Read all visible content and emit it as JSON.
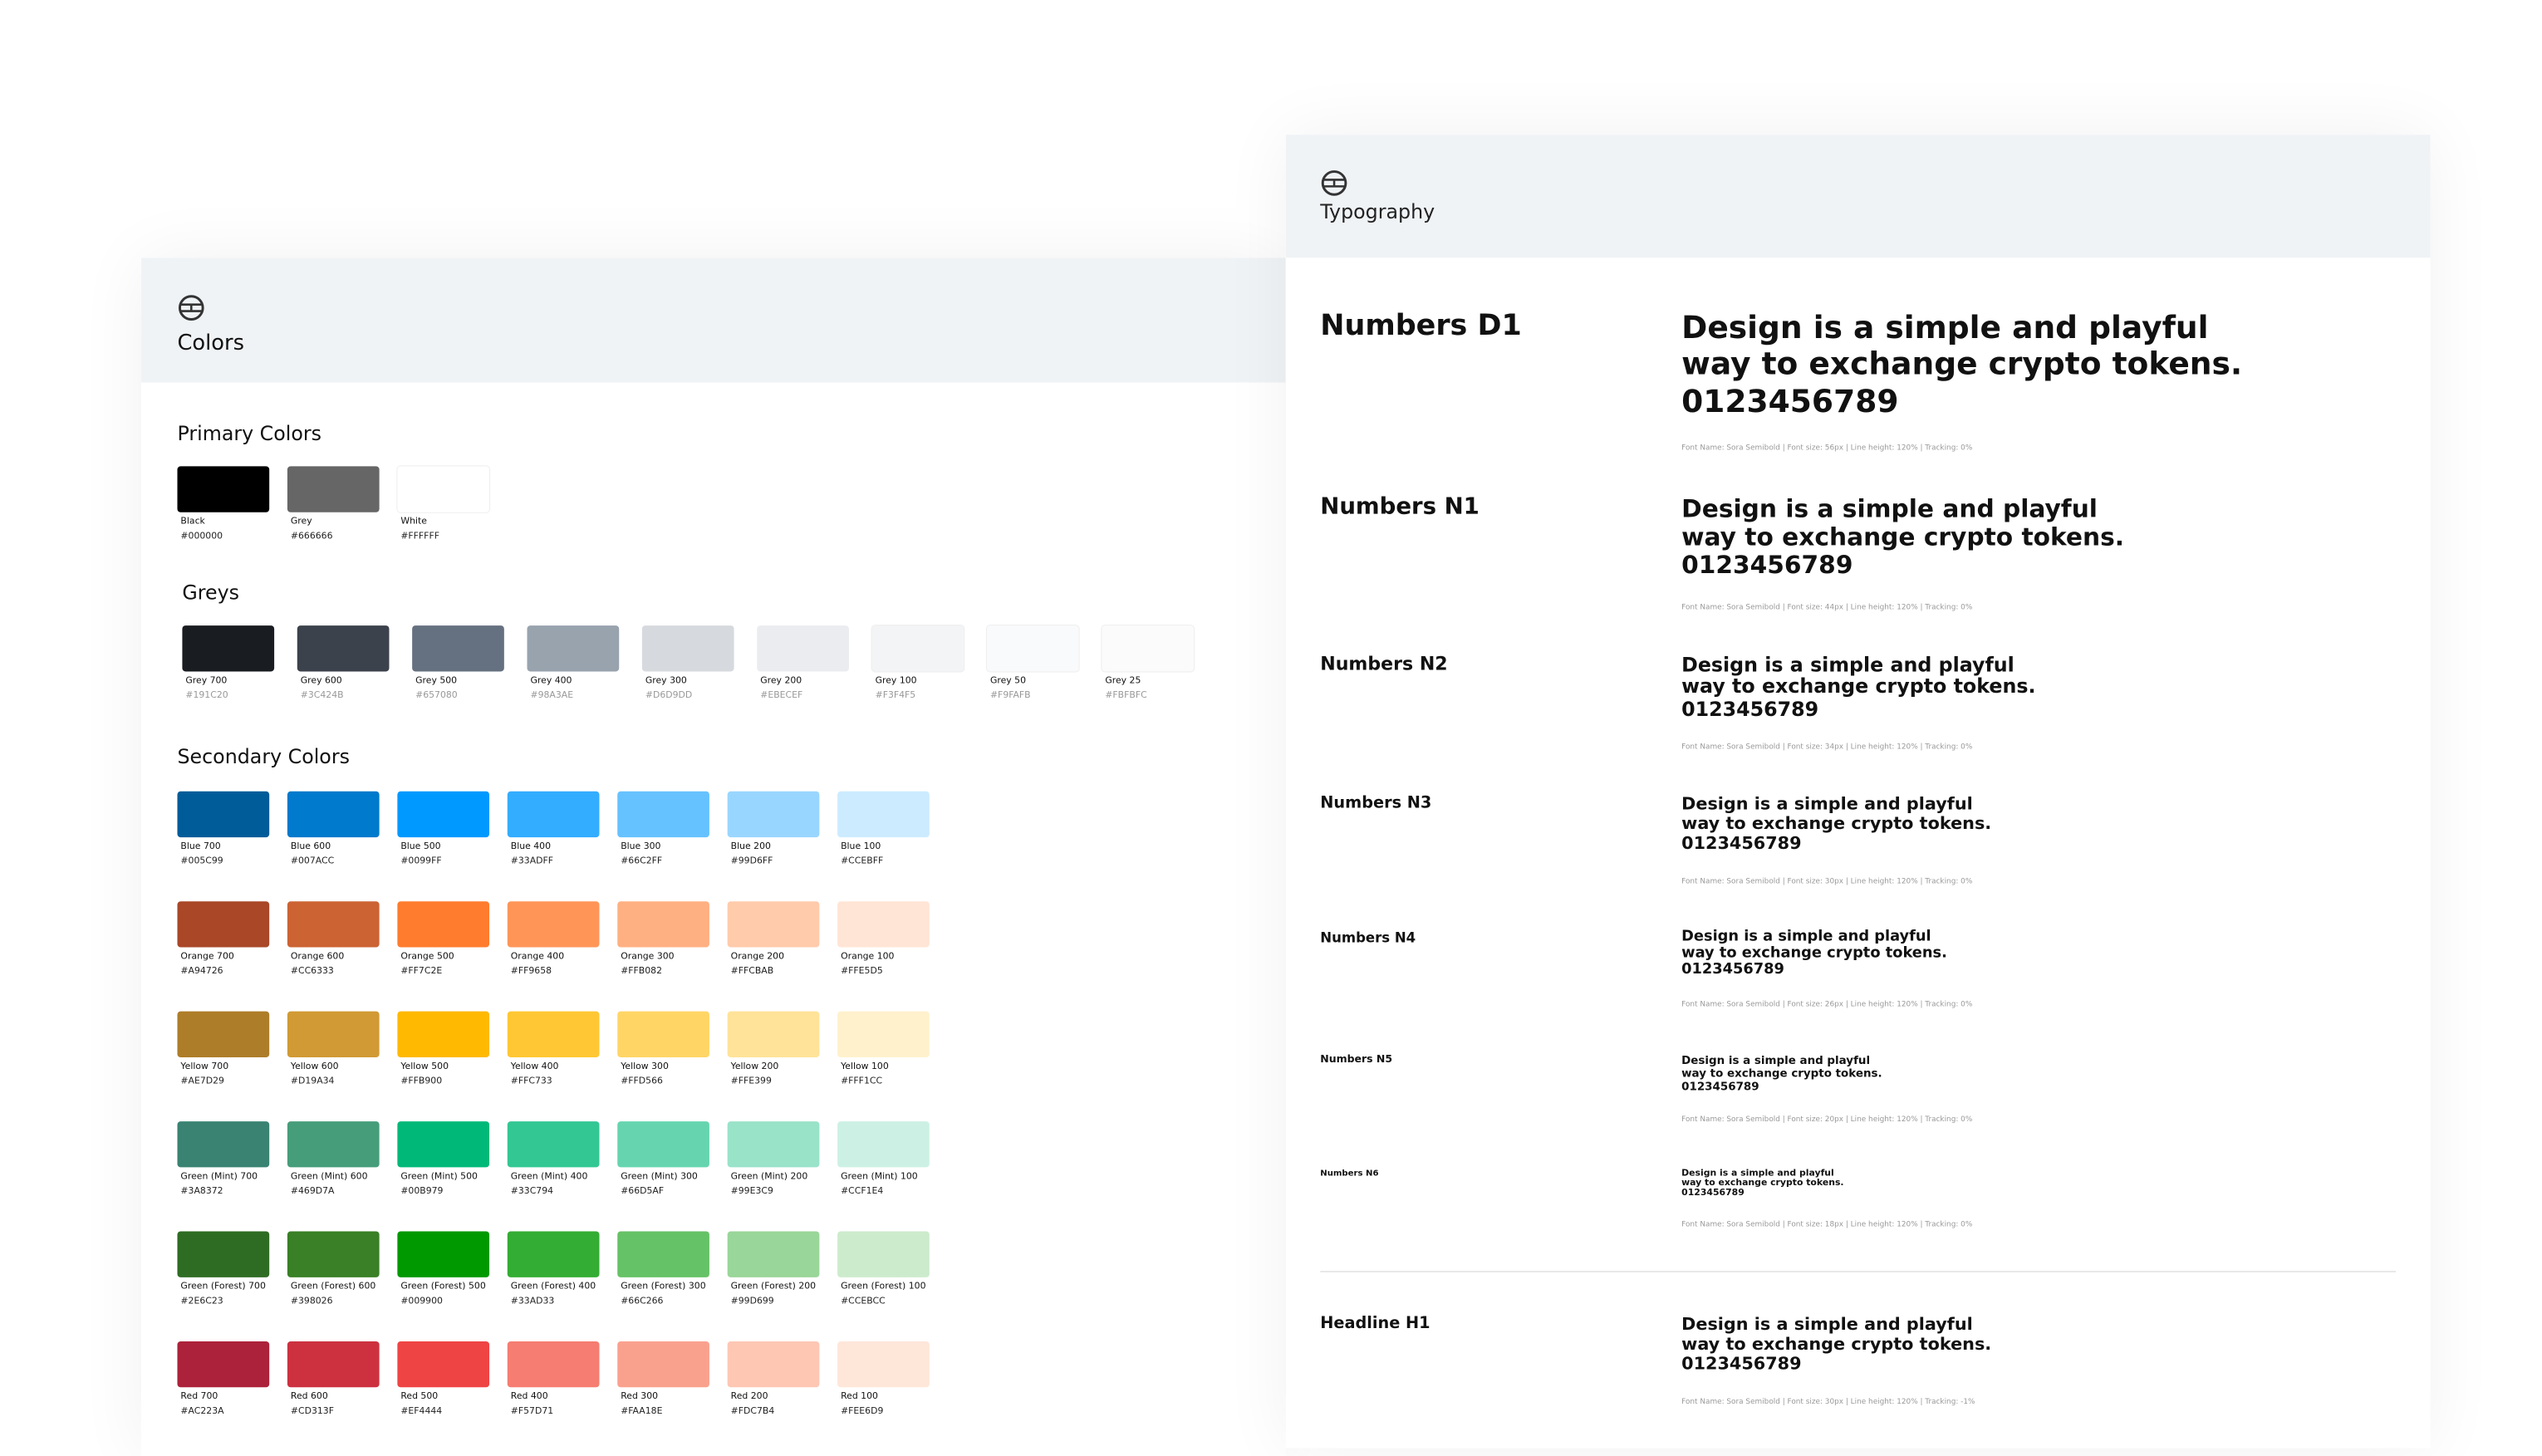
{
  "colors": {
    "title": "Colors",
    "primary": {
      "title": "Primary Colors",
      "swatches": [
        {
          "name": "Black",
          "hex": "#000000"
        },
        {
          "name": "Grey",
          "hex": "#666666"
        },
        {
          "name": "White",
          "hex": "#FFFFFF"
        }
      ]
    },
    "greys": {
      "title": "Greys",
      "swatches": [
        {
          "name": "Grey 700",
          "hex": "#191C20"
        },
        {
          "name": "Grey 600",
          "hex": "#3C424B"
        },
        {
          "name": "Grey 500",
          "hex": "#657080"
        },
        {
          "name": "Grey 400",
          "hex": "#98A3AE"
        },
        {
          "name": "Grey 300",
          "hex": "#D6D9DD"
        },
        {
          "name": "Grey 200",
          "hex": "#EBECEF"
        },
        {
          "name": "Grey 100",
          "hex": "#F3F4F5"
        },
        {
          "name": "Grey 50",
          "hex": "#F9FAFB"
        },
        {
          "name": "Grey 25",
          "hex": "#FBFBFC"
        }
      ]
    },
    "secondary": {
      "title": "Secondary Colors",
      "rows": [
        [
          {
            "name": "Blue 700",
            "hex": "#005C99"
          },
          {
            "name": "Blue 600",
            "hex": "#007ACC"
          },
          {
            "name": "Blue 500",
            "hex": "#0099FF"
          },
          {
            "name": "Blue 400",
            "hex": "#33ADFF"
          },
          {
            "name": "Blue 300",
            "hex": "#66C2FF"
          },
          {
            "name": "Blue 200",
            "hex": "#99D6FF"
          },
          {
            "name": "Blue 100",
            "hex": "#CCEBFF"
          }
        ],
        [
          {
            "name": "Orange 700",
            "hex": "#A94726"
          },
          {
            "name": "Orange 600",
            "hex": "#CC6333"
          },
          {
            "name": "Orange 500",
            "hex": "#FF7C2E"
          },
          {
            "name": "Orange 400",
            "hex": "#FF9658"
          },
          {
            "name": "Orange 300",
            "hex": "#FFB082"
          },
          {
            "name": "Orange 200",
            "hex": "#FFCBAB"
          },
          {
            "name": "Orange 100",
            "hex": "#FFE5D5"
          }
        ],
        [
          {
            "name": "Yellow 700",
            "hex": "#AE7D29"
          },
          {
            "name": "Yellow 600",
            "hex": "#D19A34"
          },
          {
            "name": "Yellow 500",
            "hex": "#FFB900"
          },
          {
            "name": "Yellow 400",
            "hex": "#FFC733"
          },
          {
            "name": "Yellow 300",
            "hex": "#FFD566"
          },
          {
            "name": "Yellow 200",
            "hex": "#FFE399"
          },
          {
            "name": "Yellow 100",
            "hex": "#FFF1CC"
          }
        ],
        [
          {
            "name": "Green (Mint) 700",
            "hex": "#3A8372"
          },
          {
            "name": "Green (Mint) 600",
            "hex": "#469D7A"
          },
          {
            "name": "Green (Mint) 500",
            "hex": "#00B979"
          },
          {
            "name": "Green (Mint) 400",
            "hex": "#33C794"
          },
          {
            "name": "Green (Mint) 300",
            "hex": "#66D5AF"
          },
          {
            "name": "Green (Mint) 200",
            "hex": "#99E3C9"
          },
          {
            "name": "Green (Mint) 100",
            "hex": "#CCF1E4"
          }
        ],
        [
          {
            "name": "Green (Forest) 700",
            "hex": "#2E6C23"
          },
          {
            "name": "Green (Forest) 600",
            "hex": "#398026"
          },
          {
            "name": "Green (Forest) 500",
            "hex": "#009900"
          },
          {
            "name": "Green (Forest) 400",
            "hex": "#33AD33"
          },
          {
            "name": "Green (Forest) 300",
            "hex": "#66C266"
          },
          {
            "name": "Green (Forest) 200",
            "hex": "#99D699"
          },
          {
            "name": "Green (Forest) 100",
            "hex": "#CCEBCC"
          }
        ],
        [
          {
            "name": "Red 700",
            "hex": "#AC223A"
          },
          {
            "name": "Red 600",
            "hex": "#CD313F"
          },
          {
            "name": "Red 500",
            "hex": "#EF4444"
          },
          {
            "name": "Red 400",
            "hex": "#F57D71"
          },
          {
            "name": "Red 300",
            "hex": "#FAA18E"
          },
          {
            "name": "Red 200",
            "hex": "#FDC7B4"
          },
          {
            "name": "Red 100",
            "hex": "#FEE6D9"
          }
        ]
      ]
    }
  },
  "typography": {
    "title": "Typography",
    "entries": [
      {
        "name": "Numbers D1",
        "sample": [
          "Design is a simple and playful",
          "way to exchange crypto tokens.",
          "0123456789"
        ],
        "spec": "Font Name: Sora Semibold | Font size: 56px | Line height: 120% | Tracking: 0%"
      },
      {
        "name": "Numbers N1",
        "sample": [
          "Design is a simple and playful",
          "way to exchange crypto tokens.",
          "0123456789"
        ],
        "spec": "Font Name: Sora Semibold | Font size: 44px | Line height: 120% | Tracking: 0%"
      },
      {
        "name": "Numbers N2",
        "sample": [
          "Design is a simple and playful",
          "way to exchange crypto tokens.",
          "0123456789"
        ],
        "spec": "Font Name: Sora Semibold | Font size: 34px | Line height: 120% | Tracking: 0%"
      },
      {
        "name": "Numbers N3",
        "sample": [
          "Design is a simple and playful",
          "way to exchange crypto tokens.",
          "0123456789"
        ],
        "spec": "Font Name: Sora Semibold | Font size: 30px | Line height: 120% | Tracking: 0%"
      },
      {
        "name": "Numbers N4",
        "sample": [
          "Design is a simple and playful",
          "way to exchange crypto tokens.",
          "0123456789"
        ],
        "spec": "Font Name: Sora Semibold | Font size: 26px | Line height: 120% | Tracking: 0%"
      },
      {
        "name": "Numbers N5",
        "sample": [
          "Design is a simple and playful",
          "way to exchange crypto tokens.",
          "0123456789"
        ],
        "spec": "Font Name: Sora Semibold | Font size: 20px | Line height: 120% | Tracking: 0%"
      },
      {
        "name": "Numbers N6",
        "sample": [
          "Design is a simple and playful",
          "way to exchange crypto tokens.",
          "0123456789"
        ],
        "spec": "Font Name: Sora Semibold | Font size: 18px | Line height: 120% | Tracking: 0%"
      },
      {
        "name": "Headline H1",
        "sample": [
          "Design is a simple and playful",
          "way to exchange crypto tokens.",
          "0123456789"
        ],
        "spec": "Font Name: Sora Semibold | Font size: 30px | Line height: 120% | Tracking: -1%"
      }
    ]
  }
}
